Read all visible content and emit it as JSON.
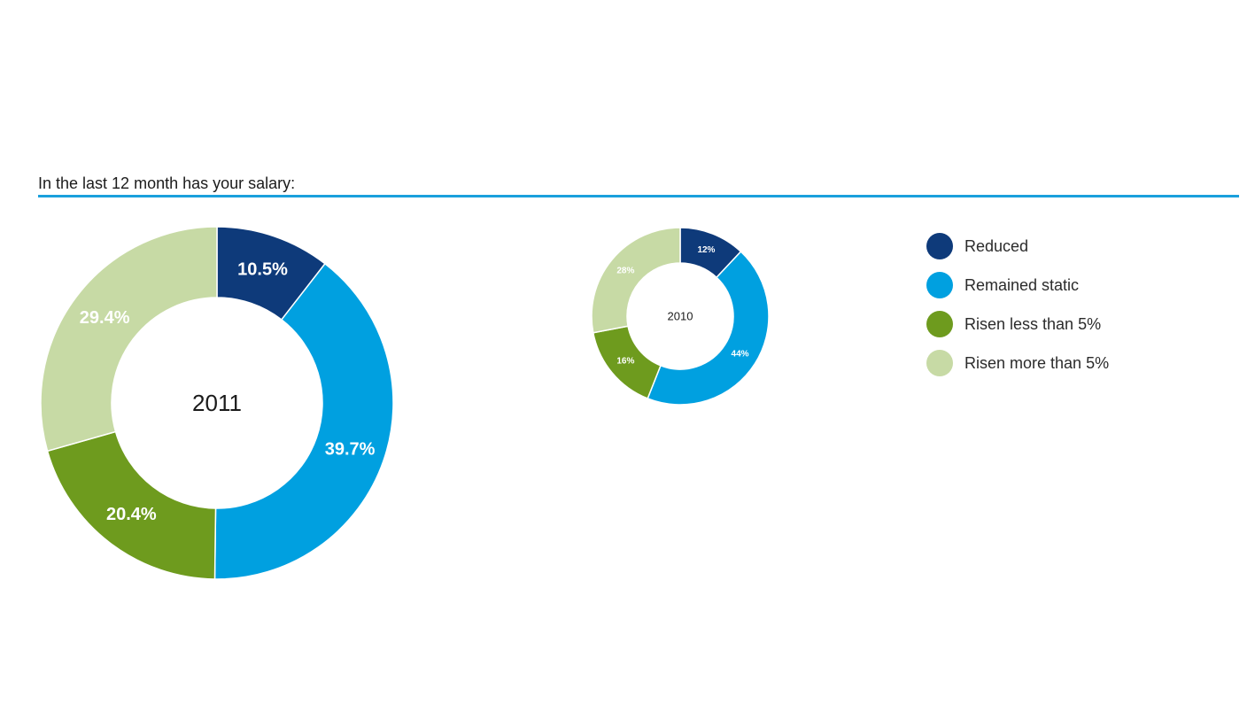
{
  "question": "In the last 12 month has your salary:",
  "legend": [
    {
      "label": "Reduced",
      "color": "#0e3a7a"
    },
    {
      "label": "Remained static",
      "color": "#00a0e0"
    },
    {
      "label": "Risen less than 5%",
      "color": "#6e9b1e"
    },
    {
      "label": "Risen more than 5%",
      "color": "#c7daa5"
    }
  ],
  "chart_data": [
    {
      "type": "pie",
      "center_label": "2011",
      "slices": [
        {
          "label": "Reduced",
          "value": 10.5,
          "display": "10.5%",
          "color": "#0e3a7a"
        },
        {
          "label": "Remained static",
          "value": 39.7,
          "display": "39.7%",
          "color": "#00a0e0"
        },
        {
          "label": "Risen less than 5%",
          "value": 20.4,
          "display": "20.4%",
          "color": "#6e9b1e"
        },
        {
          "label": "Risen more than 5%",
          "value": 29.4,
          "display": "29.4%",
          "color": "#c7daa5"
        }
      ]
    },
    {
      "type": "pie",
      "center_label": "2010",
      "slices": [
        {
          "label": "Reduced",
          "value": 12,
          "display": "12%",
          "color": "#0e3a7a"
        },
        {
          "label": "Remained static",
          "value": 44,
          "display": "44%",
          "color": "#00a0e0"
        },
        {
          "label": "Risen less than 5%",
          "value": 16,
          "display": "16%",
          "color": "#6e9b1e"
        },
        {
          "label": "Risen more than 5%",
          "value": 28,
          "display": "28%",
          "color": "#c7daa5"
        }
      ]
    }
  ]
}
